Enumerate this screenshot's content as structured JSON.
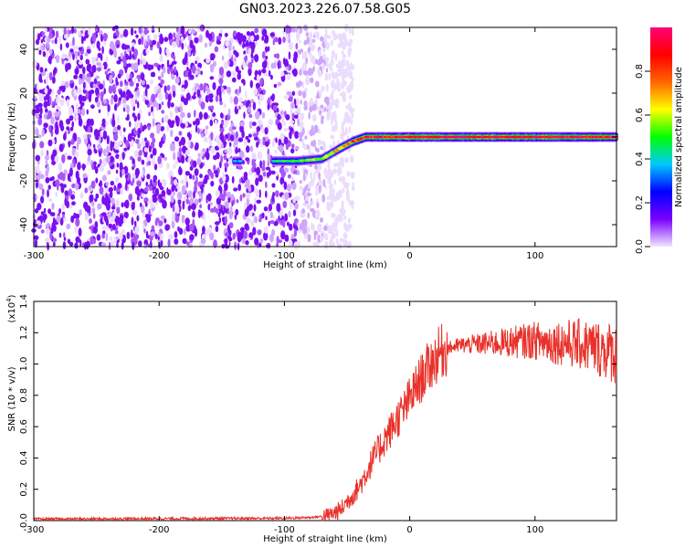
{
  "title": "GN03.2023.226.07.58.G05",
  "chart_data": [
    {
      "type": "heatmap",
      "xlabel": "Height of straight line (km)",
      "ylabel": "Frequency (Hz)",
      "xlim": [
        -300,
        165
      ],
      "ylim": [
        -50,
        50
      ],
      "xticks": [
        -300,
        -200,
        -100,
        0,
        100
      ],
      "yticks": [
        -40,
        -20,
        0,
        20,
        40
      ],
      "colorbar": {
        "label": "Normalized spectral amplitude",
        "range": [
          0,
          1
        ],
        "ticks": [
          "0.0",
          "0.2",
          "0.4",
          "0.6",
          "0.8"
        ],
        "colors": [
          "#f0e6ff",
          "#7b00ff",
          "#0000ff",
          "#00c8ff",
          "#00ff00",
          "#ffff00",
          "#ff6600",
          "#ff0000",
          "#ff0077"
        ]
      },
      "signal_track": [
        {
          "x": -140,
          "freq": -11,
          "amp": 0.35
        },
        {
          "x": -105,
          "freq": -11,
          "amp": 0.45
        },
        {
          "x": -90,
          "freq": -11,
          "amp": 0.5
        },
        {
          "x": -70,
          "freq": -10,
          "amp": 0.6
        },
        {
          "x": -55,
          "freq": -5,
          "amp": 0.7
        },
        {
          "x": -45,
          "freq": -2,
          "amp": 0.8
        },
        {
          "x": -35,
          "freq": 0,
          "amp": 0.85
        },
        {
          "x": 0,
          "freq": 0,
          "amp": 0.95
        },
        {
          "x": 100,
          "freq": 0,
          "amp": 0.95
        },
        {
          "x": 165,
          "freq": 0,
          "amp": 0.9
        }
      ],
      "noise_region_x": [
        -300,
        -65
      ]
    },
    {
      "type": "line",
      "xlabel": "Height of straight line (km)",
      "ylabel": "SNR (10 * v/v)",
      "y_multiplier_label": "(x10",
      "y_multiplier_exp": "4",
      "y_multiplier_close": ")",
      "xlim": [
        -300,
        165
      ],
      "ylim": [
        0,
        1.4
      ],
      "xticks": [
        -300,
        -200,
        -100,
        0,
        100
      ],
      "yticks": [
        "0.0",
        "0.2",
        "0.4",
        "0.6",
        "0.8",
        "1.0",
        "1.2",
        "1.4"
      ],
      "color": "#e8312a",
      "series": [
        {
          "x": [
            -300,
            -100,
            -80,
            -65,
            -55,
            -50,
            -40,
            -35,
            -30,
            -25,
            -20,
            -15,
            -10,
            -5,
            0,
            5,
            10,
            15,
            20,
            25,
            30,
            40,
            60,
            80,
            100,
            110,
            120,
            130,
            140,
            150,
            160,
            165
          ],
          "y": [
            0.01,
            0.015,
            0.02,
            0.03,
            0.07,
            0.12,
            0.22,
            0.3,
            0.38,
            0.45,
            0.52,
            0.58,
            0.65,
            0.7,
            0.78,
            0.85,
            0.92,
            0.98,
            1.03,
            1.08,
            1.1,
            1.12,
            1.13,
            1.14,
            1.15,
            1.14,
            1.14,
            1.13,
            1.12,
            1.1,
            1.08,
            1.06
          ]
        }
      ]
    }
  ]
}
